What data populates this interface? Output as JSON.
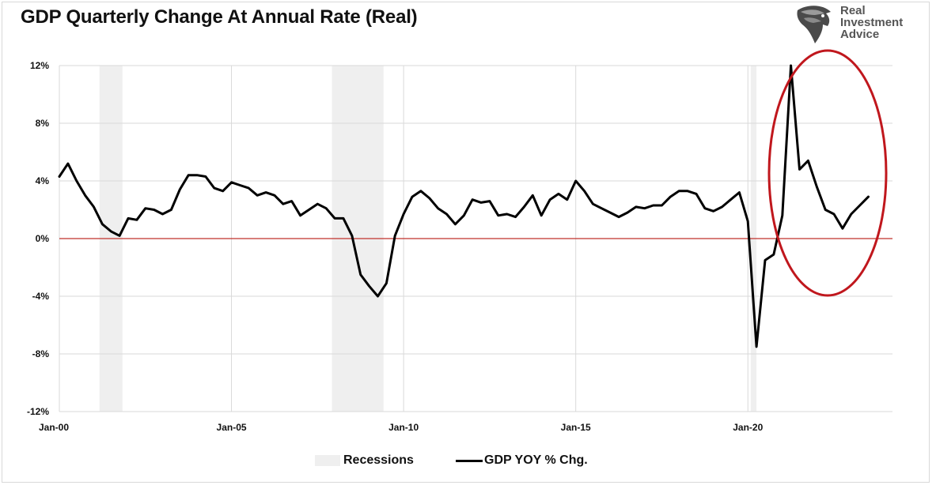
{
  "title": "GDP Quarterly Change At Annual Rate (Real)",
  "logo": {
    "line1": "Real",
    "line2": "Investment",
    "line3": "Advice",
    "icon": "eagle-head-icon"
  },
  "colors": {
    "gdp_line": "#000000",
    "zero_line": "#c0302b",
    "recession": "#efefef",
    "gridline": "#d9d9d9",
    "annotation_ellipse": "#c0171d"
  },
  "legend": {
    "recessions_label": "Recessions",
    "gdp_label": "GDP YOY % Chg."
  },
  "chart_data": {
    "type": "line",
    "title": "GDP Quarterly Change At Annual Rate (Real)",
    "xlabel": "",
    "ylabel": "",
    "ylim": [
      -12,
      12
    ],
    "y_ticks": [
      "12%",
      "8%",
      "4%",
      "0%",
      "-4%",
      "-8%",
      "-12%"
    ],
    "x_ticks": [
      "Jan-00",
      "Jan-05",
      "Jan-10",
      "Jan-15",
      "Jan-20"
    ],
    "grid": true,
    "legend_position": "bottom",
    "recessions": [
      {
        "start": "2001-03",
        "end": "2001-11"
      },
      {
        "start": "2007-12",
        "end": "2009-06"
      },
      {
        "start": "2020-02",
        "end": "2020-04"
      }
    ],
    "reference_line": {
      "y": 0
    },
    "annotation": {
      "shape": "ellipse",
      "around": "2021-2023"
    },
    "series": [
      {
        "name": "GDP YOY % Chg.",
        "x": [
          "2000-Q1",
          "2000-Q2",
          "2000-Q3",
          "2000-Q4",
          "2001-Q1",
          "2001-Q2",
          "2001-Q3",
          "2001-Q4",
          "2002-Q1",
          "2002-Q2",
          "2002-Q3",
          "2002-Q4",
          "2003-Q1",
          "2003-Q2",
          "2003-Q3",
          "2003-Q4",
          "2004-Q1",
          "2004-Q2",
          "2004-Q3",
          "2004-Q4",
          "2005-Q1",
          "2005-Q2",
          "2005-Q3",
          "2005-Q4",
          "2006-Q1",
          "2006-Q2",
          "2006-Q3",
          "2006-Q4",
          "2007-Q1",
          "2007-Q2",
          "2007-Q3",
          "2007-Q4",
          "2008-Q1",
          "2008-Q2",
          "2008-Q3",
          "2008-Q4",
          "2009-Q1",
          "2009-Q2",
          "2009-Q3",
          "2009-Q4",
          "2010-Q1",
          "2010-Q2",
          "2010-Q3",
          "2010-Q4",
          "2011-Q1",
          "2011-Q2",
          "2011-Q3",
          "2011-Q4",
          "2012-Q1",
          "2012-Q2",
          "2012-Q3",
          "2012-Q4",
          "2013-Q1",
          "2013-Q2",
          "2013-Q3",
          "2013-Q4",
          "2014-Q1",
          "2014-Q2",
          "2014-Q3",
          "2014-Q4",
          "2015-Q1",
          "2015-Q2",
          "2015-Q3",
          "2015-Q4",
          "2016-Q1",
          "2016-Q2",
          "2016-Q3",
          "2016-Q4",
          "2017-Q1",
          "2017-Q2",
          "2017-Q3",
          "2017-Q4",
          "2018-Q1",
          "2018-Q2",
          "2018-Q3",
          "2018-Q4",
          "2019-Q1",
          "2019-Q2",
          "2019-Q3",
          "2019-Q4",
          "2020-Q1",
          "2020-Q2",
          "2020-Q3",
          "2020-Q4",
          "2021-Q1",
          "2021-Q2",
          "2021-Q3",
          "2021-Q4",
          "2022-Q1",
          "2022-Q2",
          "2022-Q3",
          "2022-Q4",
          "2023-Q1",
          "2023-Q2",
          "2023-Q3"
        ],
        "values": [
          4.3,
          5.2,
          4.0,
          3.0,
          2.2,
          1.0,
          0.5,
          0.2,
          1.4,
          1.3,
          2.1,
          2.0,
          1.7,
          2.0,
          3.4,
          4.4,
          4.4,
          4.3,
          3.5,
          3.3,
          3.9,
          3.7,
          3.5,
          3.0,
          3.2,
          3.0,
          2.4,
          2.6,
          1.6,
          2.0,
          2.4,
          2.1,
          1.4,
          1.4,
          0.2,
          -2.5,
          -3.3,
          -4.0,
          -3.1,
          0.2,
          1.7,
          2.9,
          3.3,
          2.8,
          2.1,
          1.7,
          1.0,
          1.6,
          2.7,
          2.5,
          2.6,
          1.6,
          1.7,
          1.5,
          2.2,
          3.0,
          1.6,
          2.7,
          3.1,
          2.7,
          4.0,
          3.3,
          2.4,
          2.1,
          1.8,
          1.5,
          1.8,
          2.2,
          2.1,
          2.3,
          2.3,
          2.9,
          3.3,
          3.3,
          3.1,
          2.1,
          1.9,
          2.2,
          2.7,
          3.2,
          1.2,
          -7.5,
          -1.5,
          -1.1,
          1.6,
          12.0,
          4.8,
          5.4,
          3.6,
          2.0,
          1.7,
          0.7,
          1.7,
          2.3,
          2.9
        ]
      }
    ]
  }
}
